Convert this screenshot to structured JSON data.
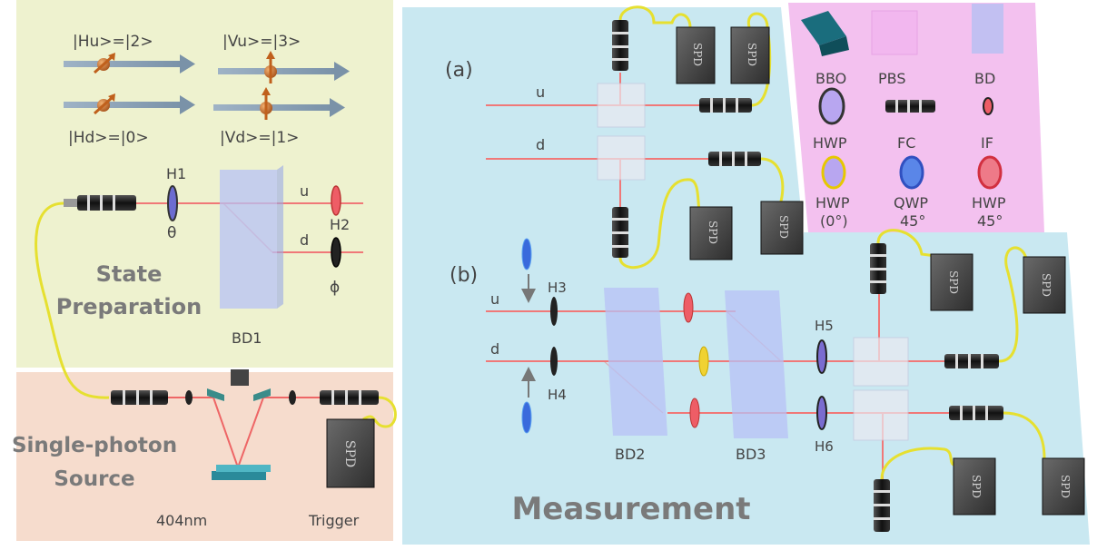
{
  "state_prep": {
    "title_line1": "State",
    "title_line2": "Preparation",
    "ket_hu": "|Hu>=|2>",
    "ket_vu": "|Vu>=|3>",
    "ket_hd": "|Hd>=|0>",
    "ket_vd": "|Vd>=|1>",
    "h1": "H1",
    "h2": "H2",
    "theta": "θ",
    "phi": "ϕ",
    "u": "u",
    "d": "d",
    "bd1": "BD1"
  },
  "source": {
    "title_line1": "Single-photon",
    "title_line2": "Source",
    "wavelength": "404nm",
    "trigger": "Trigger",
    "spd": "SPD"
  },
  "measurement": {
    "title": "Measurement",
    "part_a": "(a)",
    "part_b": "(b)",
    "u": "u",
    "d": "d",
    "h3": "H3",
    "h4": "H4",
    "h5": "H5",
    "h6": "H6",
    "bd2": "BD2",
    "bd3": "BD3",
    "spd": "SPD"
  },
  "legend": {
    "bbo": "BBO",
    "pbs": "PBS",
    "bd": "BD",
    "hwp": "HWP",
    "fc": "FC",
    "if": "IF",
    "hwp0": "HWP",
    "hwp0_angle": "(0°)",
    "qwp45": "QWP",
    "qwp45_angle": "45°",
    "hwp45": "HWP",
    "hwp45_angle": "45°"
  },
  "colors": {
    "state_bg": "#eef2cf",
    "source_bg": "#f6dccd",
    "measure_bg": "#c9e8f1",
    "legend_bg": "#f3c1ef",
    "laser": "#f07878",
    "fiber": "#e6e030",
    "arrow": "#8aa0b4"
  }
}
